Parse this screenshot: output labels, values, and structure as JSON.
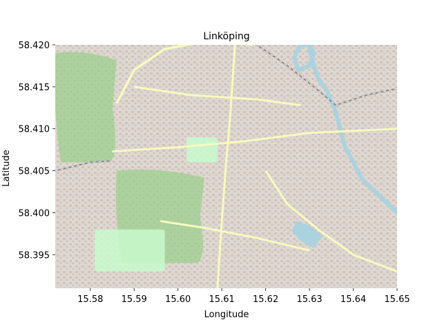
{
  "chart_data": {
    "type": "map",
    "title": "Linköping",
    "xlabel": "Longitude",
    "ylabel": "Latitude",
    "xlim": [
      15.572,
      15.65
    ],
    "ylim": [
      58.391,
      58.42
    ],
    "xticks": [
      15.58,
      15.59,
      15.6,
      15.61,
      15.62,
      15.63,
      15.64,
      15.65
    ],
    "xtick_labels": [
      "15.58",
      "15.59",
      "15.60",
      "15.61",
      "15.62",
      "15.63",
      "15.64",
      "15.65"
    ],
    "yticks": [
      58.395,
      58.4,
      58.405,
      58.41,
      58.415,
      58.42
    ],
    "ytick_labels": [
      "58.395",
      "58.400",
      "58.405",
      "58.410",
      "58.415",
      "58.420"
    ],
    "basemap": "OpenStreetMap tiles",
    "colors": {
      "land": "#eee9df",
      "urban": "#ddd5cf",
      "forest": "#add19e",
      "park": "#c8facc",
      "water": "#aad3df",
      "road": "#f7fabf",
      "railway": "#8a8a8a"
    },
    "places": {
      "forest_west": {
        "lon": [
          15.572,
          15.586
        ],
        "lat": [
          58.406,
          58.419
        ]
      },
      "forest_center": {
        "lon": [
          15.586,
          15.606
        ],
        "lat": [
          58.394,
          58.405
        ]
      },
      "park_southwest": {
        "lon": [
          15.581,
          15.597
        ],
        "lat": [
          58.393,
          58.398
        ]
      },
      "park_center": {
        "lon": [
          15.602,
          15.609
        ],
        "lat": [
          58.406,
          58.409
        ]
      },
      "river_path": [
        [
          15.63,
          58.4195
        ],
        [
          15.631,
          58.4175
        ],
        [
          15.632,
          58.416
        ],
        [
          15.634,
          58.4145
        ],
        [
          15.636,
          58.412
        ],
        [
          15.637,
          58.41
        ],
        [
          15.638,
          58.408
        ],
        [
          15.64,
          58.406
        ],
        [
          15.642,
          58.404
        ],
        [
          15.645,
          58.4025
        ],
        [
          15.648,
          58.401
        ],
        [
          15.65,
          58.4
        ]
      ],
      "river_loop_north": [
        [
          15.628,
          58.42
        ],
        [
          15.6265,
          58.4185
        ],
        [
          15.6275,
          58.417
        ],
        [
          15.63,
          58.4175
        ],
        [
          15.631,
          58.419
        ],
        [
          15.63,
          58.42
        ]
      ],
      "pond_south": [
        [
          15.627,
          58.399
        ],
        [
          15.63,
          58.3985
        ],
        [
          15.633,
          58.3972
        ],
        [
          15.631,
          58.3958
        ],
        [
          15.628,
          58.3966
        ],
        [
          15.626,
          58.3978
        ]
      ],
      "railway_path": [
        [
          15.618,
          58.42
        ],
        [
          15.625,
          58.4175
        ],
        [
          15.631,
          58.415
        ],
        [
          15.636,
          58.4128
        ],
        [
          15.643,
          58.414
        ],
        [
          15.65,
          58.4148
        ]
      ],
      "railway_west": [
        [
          15.572,
          58.405
        ],
        [
          15.58,
          58.406
        ],
        [
          15.585,
          58.4062
        ]
      ],
      "ring_road": [
        [
          15.586,
          58.413
        ],
        [
          15.59,
          58.417
        ],
        [
          15.597,
          58.4195
        ],
        [
          15.607,
          58.4205
        ],
        [
          15.617,
          58.42
        ]
      ],
      "main_roads": [
        [
          [
            15.585,
            58.4073
          ],
          [
            15.6,
            58.4078
          ],
          [
            15.615,
            58.4085
          ],
          [
            15.63,
            58.4095
          ],
          [
            15.65,
            58.41
          ]
        ],
        [
          [
            15.613,
            58.42
          ],
          [
            15.612,
            58.412
          ],
          [
            15.611,
            58.406
          ],
          [
            15.61,
            58.399
          ],
          [
            15.609,
            58.391
          ]
        ],
        [
          [
            15.59,
            58.415
          ],
          [
            15.603,
            58.414
          ],
          [
            15.618,
            58.4135
          ],
          [
            15.628,
            58.4128
          ]
        ],
        [
          [
            15.62,
            58.405
          ],
          [
            15.625,
            58.401
          ],
          [
            15.632,
            58.398
          ],
          [
            15.64,
            58.395
          ],
          [
            15.65,
            58.393
          ]
        ],
        [
          [
            15.596,
            58.399
          ],
          [
            15.606,
            58.3982
          ],
          [
            15.618,
            58.397
          ],
          [
            15.63,
            58.3955
          ]
        ]
      ]
    }
  }
}
